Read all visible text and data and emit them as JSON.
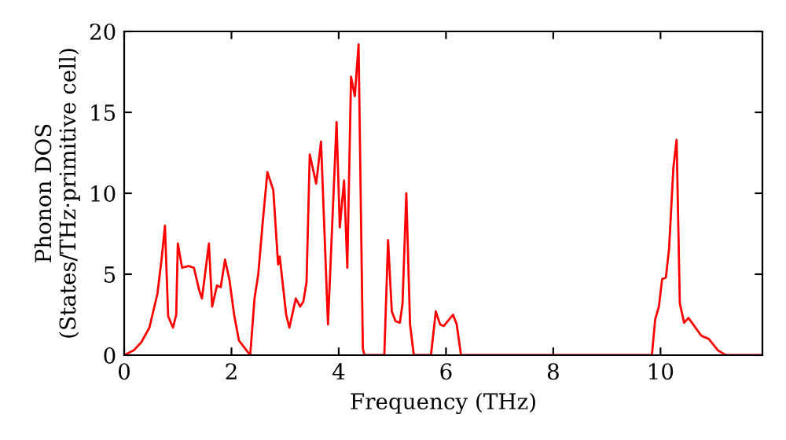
{
  "chart_data": {
    "type": "line",
    "xlabel": "Frequency (THz)",
    "ylabel": "Phonon DOS\n(States/THz·primitive cell)",
    "xlim": [
      0,
      11.9
    ],
    "ylim": [
      0,
      20
    ],
    "xticks": [
      0,
      2,
      4,
      6,
      8,
      10
    ],
    "yticks": [
      0,
      5,
      10,
      15,
      20
    ],
    "grid": false,
    "legend": false,
    "marker": "none",
    "line_style": "solid",
    "series": [
      {
        "color": "#ff0000",
        "x": [
          0,
          0.18,
          0.32,
          0.47,
          0.62,
          0.7,
          0.76,
          0.82,
          0.91,
          0.97,
          1.0,
          1.08,
          1.2,
          1.3,
          1.4,
          1.45,
          1.58,
          1.64,
          1.73,
          1.8,
          1.88,
          1.96,
          2.05,
          2.14,
          2.28,
          2.35,
          2.43,
          2.5,
          2.58,
          2.67,
          2.78,
          2.87,
          2.9,
          3.02,
          3.08,
          3.2,
          3.28,
          3.34,
          3.4,
          3.46,
          3.58,
          3.67,
          3.8,
          3.96,
          4.02,
          4.1,
          4.16,
          4.23,
          4.3,
          4.37,
          4.45,
          4.48,
          4.85,
          4.92,
          4.99,
          5.06,
          5.14,
          5.19,
          5.26,
          5.33,
          5.4,
          5.72,
          5.81,
          5.89,
          5.96,
          6.13,
          6.2,
          6.28,
          9.84,
          9.9,
          9.97,
          10.03,
          10.1,
          10.16,
          10.24,
          10.3,
          10.36,
          10.44,
          10.52,
          10.63,
          10.76,
          10.9,
          11.07,
          11.22,
          11.9
        ],
        "values": [
          0,
          0.3,
          0.8,
          1.7,
          3.8,
          6,
          8,
          2.4,
          1.7,
          2.5,
          6.9,
          5.4,
          5.5,
          5.4,
          4,
          3.5,
          6.9,
          3,
          4.3,
          4.2,
          5.9,
          4.7,
          2.5,
          0.9,
          0.3,
          0,
          3.5,
          5,
          8.1,
          11.3,
          10.2,
          5.6,
          6.1,
          2.5,
          1.7,
          3.5,
          3,
          3.3,
          4.5,
          12.4,
          10.6,
          13.2,
          1.9,
          14.4,
          7.9,
          10.8,
          5.4,
          17.2,
          16,
          19.2,
          0.4,
          0,
          0,
          7.1,
          2.7,
          2.1,
          2,
          3.2,
          10,
          1.9,
          0,
          0,
          2.7,
          1.9,
          1.8,
          2.5,
          1.9,
          0,
          0,
          2.2,
          3,
          4.7,
          4.8,
          6.6,
          11.6,
          13.3,
          3.2,
          2,
          2.3,
          1.8,
          1.2,
          1,
          0.3,
          0,
          0
        ]
      }
    ]
  }
}
